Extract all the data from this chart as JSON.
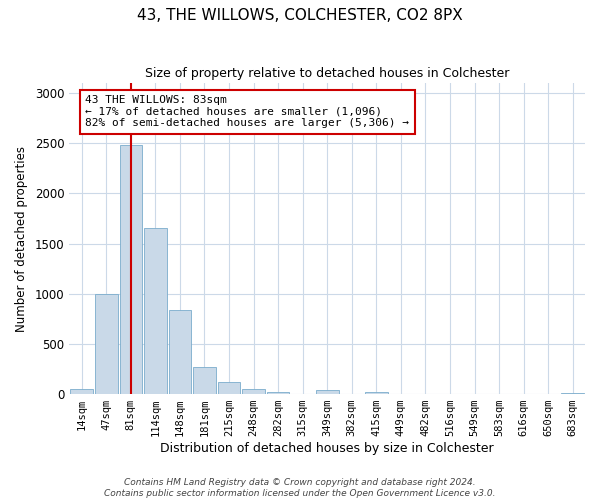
{
  "title": "43, THE WILLOWS, COLCHESTER, CO2 8PX",
  "subtitle": "Size of property relative to detached houses in Colchester",
  "xlabel": "Distribution of detached houses by size in Colchester",
  "ylabel": "Number of detached properties",
  "bin_labels": [
    "14sqm",
    "47sqm",
    "81sqm",
    "114sqm",
    "148sqm",
    "181sqm",
    "215sqm",
    "248sqm",
    "282sqm",
    "315sqm",
    "349sqm",
    "382sqm",
    "415sqm",
    "449sqm",
    "482sqm",
    "516sqm",
    "549sqm",
    "583sqm",
    "616sqm",
    "650sqm",
    "683sqm"
  ],
  "bar_heights": [
    55,
    1000,
    2480,
    1660,
    840,
    270,
    120,
    50,
    25,
    0,
    45,
    0,
    20,
    0,
    0,
    0,
    0,
    0,
    0,
    0,
    15
  ],
  "bar_color": "#c9d9e8",
  "bar_edge_color": "#7aaccc",
  "vline_x": 2,
  "vline_color": "#cc0000",
  "annotation_text": "43 THE WILLOWS: 83sqm\n← 17% of detached houses are smaller (1,096)\n82% of semi-detached houses are larger (5,306) →",
  "annotation_box_color": "#ffffff",
  "annotation_box_edge": "#cc0000",
  "ylim": [
    0,
    3100
  ],
  "yticks": [
    0,
    500,
    1000,
    1500,
    2000,
    2500,
    3000
  ],
  "footer": "Contains HM Land Registry data © Crown copyright and database right 2024.\nContains public sector information licensed under the Open Government Licence v3.0.",
  "bg_color": "#ffffff",
  "grid_color": "#ccd9e8"
}
